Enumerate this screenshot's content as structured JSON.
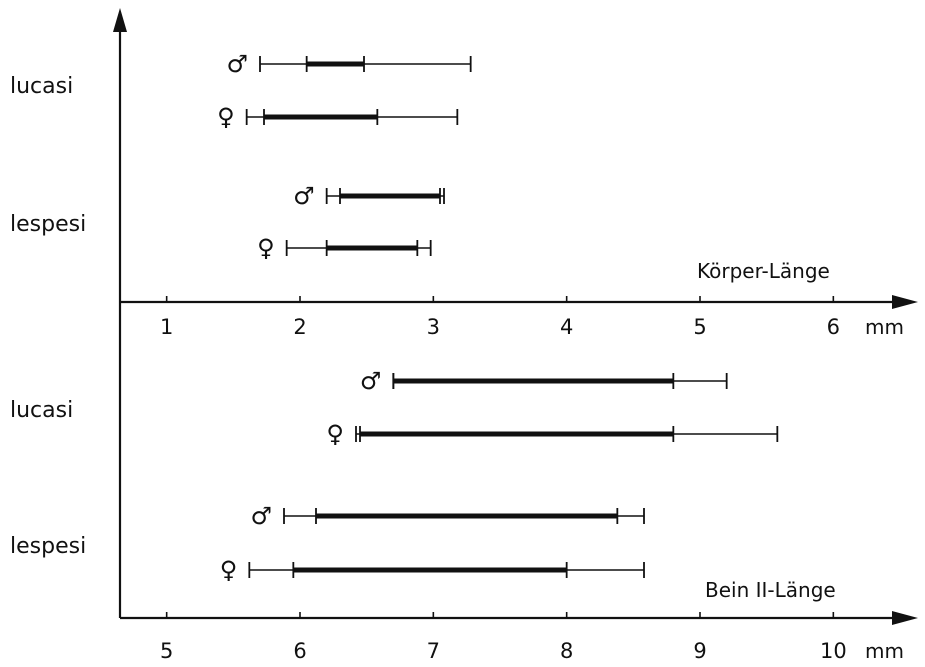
{
  "chart_data": [
    {
      "type": "range",
      "xlabel": "Körper-Länge",
      "unit": "mm",
      "ticks": [
        1,
        2,
        3,
        4,
        5,
        6
      ],
      "xlim": [
        0.65,
        6.65
      ],
      "species": [
        {
          "name": "lucasi",
          "rows": [
            {
              "sex": "♂",
              "min": 1.7,
              "q1": 2.05,
              "q3": 2.48,
              "max": 3.28
            },
            {
              "sex": "♀",
              "min": 1.6,
              "q1": 1.73,
              "q3": 2.58,
              "max": 3.18
            }
          ]
        },
        {
          "name": "lespesi",
          "rows": [
            {
              "sex": "♂",
              "min": 2.2,
              "q1": 2.3,
              "q3": 3.05,
              "max": 3.08
            },
            {
              "sex": "♀",
              "min": 1.9,
              "q1": 2.2,
              "q3": 2.88,
              "max": 2.98
            }
          ]
        }
      ]
    },
    {
      "type": "range",
      "xlabel": "Bein II-Länge",
      "unit": "mm",
      "ticks": [
        5,
        6,
        7,
        8,
        9,
        10
      ],
      "xlim": [
        4.65,
        10.65
      ],
      "species": [
        {
          "name": "lucasi",
          "rows": [
            {
              "sex": "♂",
              "min": 6.7,
              "q1": 6.7,
              "q3": 8.8,
              "max": 9.2
            },
            {
              "sex": "♀",
              "min": 6.42,
              "q1": 6.45,
              "q3": 8.8,
              "max": 9.58
            }
          ]
        },
        {
          "name": "lespesi",
          "rows": [
            {
              "sex": "♂",
              "min": 5.88,
              "q1": 6.12,
              "q3": 8.38,
              "max": 8.58
            },
            {
              "sex": "♀",
              "min": 5.62,
              "q1": 5.95,
              "q3": 8.0,
              "max": 8.58
            }
          ]
        }
      ]
    }
  ]
}
